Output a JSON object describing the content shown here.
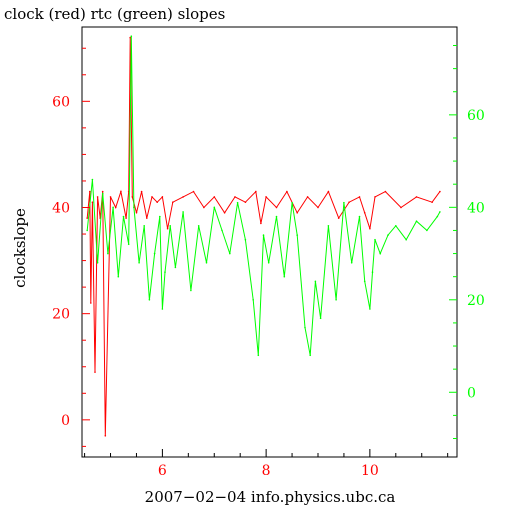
{
  "chart_data": {
    "type": "line",
    "title": "clock (red) rtc (green) slopes",
    "xlabel": "2007−02−04  info.physics.ubc.ca",
    "ylabel": "clockslope",
    "colors": {
      "left_axis": "#ff0000",
      "right_axis": "#00ff00",
      "frame": "#000000"
    },
    "x_axis": {
      "range": [
        4.45,
        11.68
      ],
      "tick_labels": [
        "6",
        "8",
        "10"
      ],
      "tick_values": [
        6,
        8,
        10
      ]
    },
    "y_left": {
      "range": [
        -7,
        74
      ],
      "tick_labels": [
        "0",
        "20",
        "40",
        "60"
      ],
      "tick_values": [
        0,
        20,
        40,
        60
      ]
    },
    "y_right": {
      "range": [
        -14,
        79
      ],
      "tick_labels": [
        "0",
        "20",
        "40",
        "60"
      ],
      "tick_values": [
        0,
        20,
        40,
        60
      ]
    },
    "series": [
      {
        "name": "clock",
        "axis": "left",
        "color": "#ff0000",
        "x": [
          4.55,
          4.6,
          4.62,
          4.65,
          4.7,
          4.75,
          4.8,
          4.85,
          4.9,
          5.0,
          5.1,
          5.2,
          5.3,
          5.35,
          5.38,
          5.42,
          5.5,
          5.6,
          5.7,
          5.8,
          5.9,
          6.0,
          6.1,
          6.2,
          6.4,
          6.6,
          6.8,
          7.0,
          7.2,
          7.4,
          7.6,
          7.8,
          7.9,
          8.0,
          8.2,
          8.4,
          8.6,
          8.8,
          9.0,
          9.2,
          9.4,
          9.6,
          9.8,
          9.9,
          10.0,
          10.1,
          10.3,
          10.6,
          10.9,
          11.2,
          11.35
        ],
        "y": [
          38,
          43,
          22,
          41,
          9,
          42,
          38,
          43,
          -3,
          42,
          40,
          43,
          38,
          43,
          72,
          42,
          39,
          43,
          38,
          42,
          41,
          42,
          36,
          41,
          42,
          43,
          40,
          42,
          39,
          42,
          41,
          43,
          37,
          42,
          40,
          43,
          39,
          42,
          40,
          43,
          38,
          41,
          42,
          39,
          36,
          42,
          43,
          40,
          42,
          41,
          43
        ]
      },
      {
        "name": "rtc",
        "axis": "right",
        "color": "#00ff00",
        "x": [
          4.55,
          4.65,
          4.75,
          4.85,
          4.95,
          5.05,
          5.15,
          5.25,
          5.35,
          5.4,
          5.45,
          5.55,
          5.65,
          5.75,
          5.85,
          5.95,
          6.0,
          6.05,
          6.15,
          6.25,
          6.4,
          6.55,
          6.7,
          6.85,
          7.0,
          7.15,
          7.3,
          7.45,
          7.6,
          7.75,
          7.85,
          7.95,
          8.05,
          8.2,
          8.35,
          8.5,
          8.6,
          8.75,
          8.85,
          8.95,
          9.05,
          9.2,
          9.35,
          9.5,
          9.65,
          9.8,
          9.9,
          10.0,
          10.05,
          10.1,
          10.2,
          10.35,
          10.5,
          10.7,
          10.9,
          11.1,
          11.3,
          11.35
        ],
        "y": [
          35,
          46,
          28,
          43,
          30,
          40,
          25,
          38,
          32,
          77,
          40,
          28,
          36,
          20,
          30,
          38,
          18,
          26,
          36,
          27,
          39,
          22,
          36,
          28,
          40,
          35,
          30,
          41,
          33,
          20,
          8,
          34,
          28,
          38,
          25,
          41,
          34,
          14,
          8,
          24,
          16,
          36,
          20,
          41,
          28,
          38,
          24,
          18,
          26,
          33,
          30,
          34,
          36,
          33,
          37,
          35,
          38,
          39
        ]
      }
    ],
    "grid": false,
    "legend": "none"
  }
}
